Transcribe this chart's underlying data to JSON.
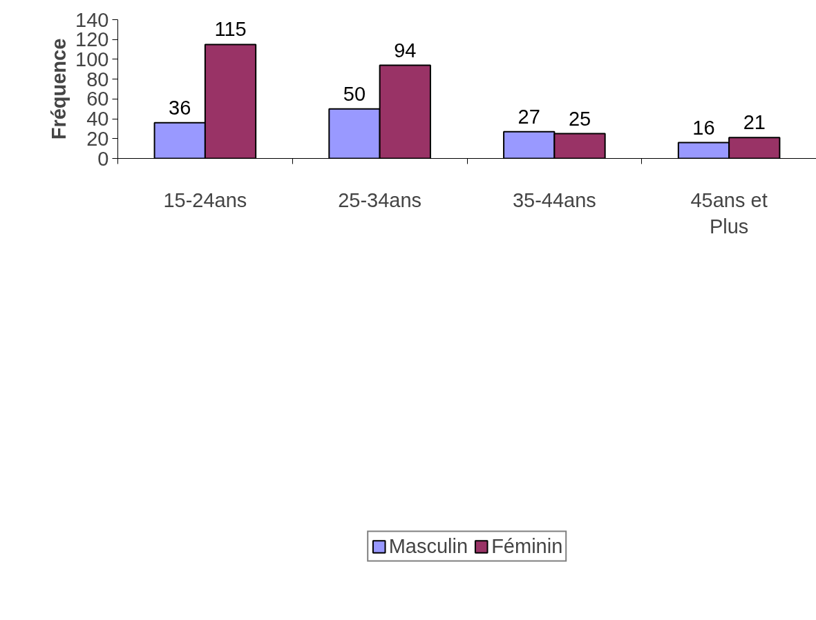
{
  "chart_data": {
    "type": "bar",
    "ylabel": "Fréquence",
    "categories": [
      "15-24ans",
      "25-34ans",
      "35-44ans",
      "45ans et Plus"
    ],
    "series": [
      {
        "name": "Masculin",
        "color": "#9999ff",
        "values": [
          36,
          50,
          27,
          16
        ]
      },
      {
        "name": "Féminin",
        "color": "#993366",
        "values": [
          115,
          94,
          25,
          21
        ]
      }
    ],
    "ylim": [
      0,
      140
    ],
    "yticks": [
      0,
      20,
      40,
      60,
      80,
      100,
      120,
      140
    ],
    "data_labels": true,
    "grid": false,
    "legend": "bottom"
  }
}
